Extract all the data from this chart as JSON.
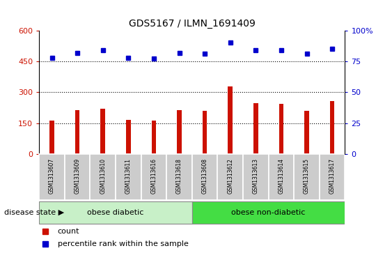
{
  "title": "GDS5167 / ILMN_1691409",
  "samples": [
    "GSM1313607",
    "GSM1313609",
    "GSM1313610",
    "GSM1313611",
    "GSM1313616",
    "GSM1313618",
    "GSM1313608",
    "GSM1313612",
    "GSM1313613",
    "GSM1313614",
    "GSM1313615",
    "GSM1313617"
  ],
  "counts": [
    165,
    215,
    220,
    168,
    163,
    215,
    210,
    330,
    248,
    243,
    210,
    258
  ],
  "percentiles": [
    78,
    82,
    84,
    78,
    77,
    82,
    81,
    90,
    84,
    84,
    81,
    85
  ],
  "bar_color": "#cc1100",
  "dot_color": "#0000cc",
  "ylim_left": [
    0,
    600
  ],
  "ylim_right": [
    0,
    100
  ],
  "yticks_left": [
    0,
    150,
    300,
    450,
    600
  ],
  "yticks_right": [
    0,
    25,
    50,
    75,
    100
  ],
  "ytick_labels_right": [
    "0",
    "25",
    "50",
    "75",
    "100%"
  ],
  "grid_lines": [
    150,
    300,
    450
  ],
  "groups": [
    {
      "label": "obese diabetic",
      "start": 0,
      "end": 6,
      "color": "#c8f0c8"
    },
    {
      "label": "obese non-diabetic",
      "start": 6,
      "end": 12,
      "color": "#44dd44"
    }
  ],
  "disease_state_label": "disease state",
  "legend_count_label": "count",
  "legend_pct_label": "percentile rank within the sample",
  "background_color": "#ffffff",
  "tick_area_color": "#cccccc"
}
